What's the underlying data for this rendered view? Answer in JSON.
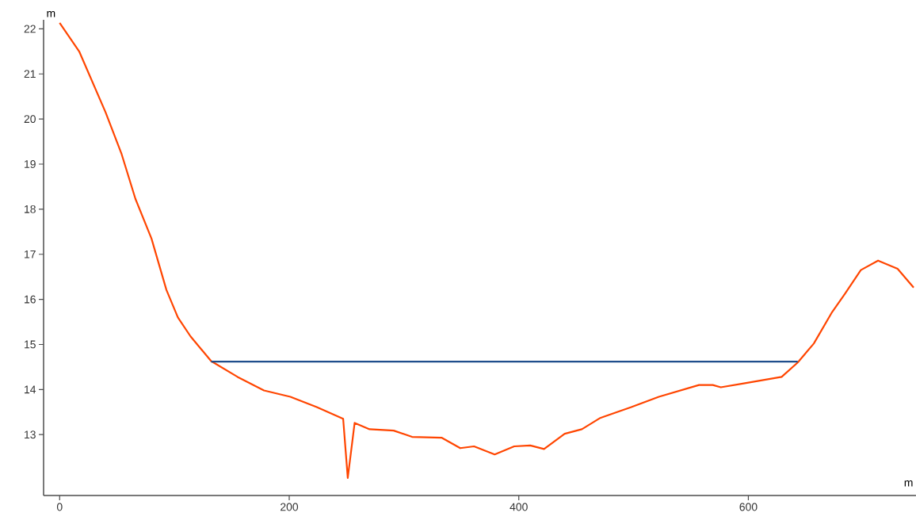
{
  "chart_data": {
    "type": "line",
    "xlabel": "m",
    "ylabel": "m",
    "xlim": [
      -14,
      746
    ],
    "ylim": [
      11.65,
      22.2
    ],
    "xticks": [
      0,
      200,
      400,
      600
    ],
    "yticks": [
      13,
      14,
      15,
      16,
      17,
      18,
      19,
      20,
      21,
      22
    ],
    "grid": false,
    "marker": "none",
    "line_style": "solid",
    "series": [
      {
        "color": "#ff4500",
        "x": [
          0,
          17,
          40,
          54,
          66,
          80,
          93,
          103,
          114,
          132,
          155,
          178,
          201,
          224,
          247,
          251,
          257,
          270,
          291,
          307,
          333,
          349,
          361,
          379,
          396,
          410,
          422,
          440,
          455,
          471,
          498,
          522,
          557,
          569,
          576,
          597,
          629,
          643,
          657,
          673,
          684,
          698,
          713,
          730,
          744
        ],
        "values": [
          22.13,
          21.5,
          20.15,
          19.22,
          18.23,
          17.35,
          16.21,
          15.6,
          15.18,
          14.63,
          14.28,
          13.98,
          13.84,
          13.61,
          13.35,
          12.04,
          13.26,
          13.12,
          13.09,
          12.95,
          12.93,
          12.7,
          12.74,
          12.56,
          12.74,
          12.76,
          12.68,
          13.02,
          13.12,
          13.37,
          13.61,
          13.84,
          14.1,
          14.1,
          14.05,
          14.14,
          14.28,
          14.6,
          15.02,
          15.72,
          16.12,
          16.65,
          16.86,
          16.68,
          16.26
        ]
      },
      {
        "color": "#1f4e8c",
        "x": [
          132,
          643
        ],
        "values": [
          14.62,
          14.62
        ]
      }
    ]
  }
}
